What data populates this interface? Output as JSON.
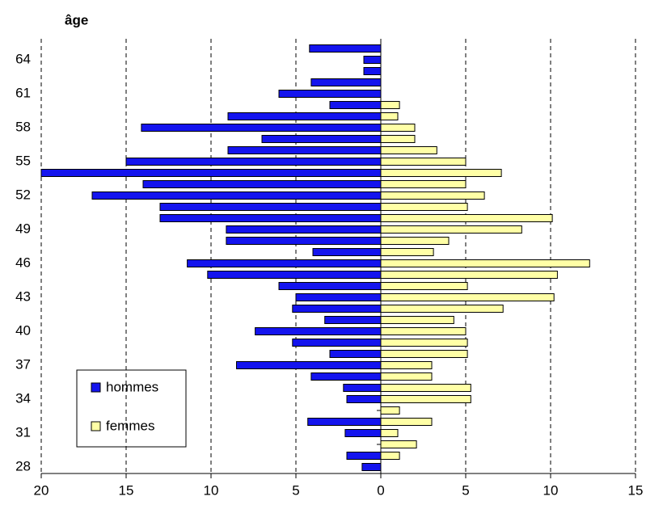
{
  "chart_data": {
    "type": "pyramid",
    "y_axis_title": "âge",
    "categories": [
      28,
      null,
      null,
      31,
      null,
      null,
      34,
      null,
      null,
      37,
      null,
      null,
      40,
      null,
      null,
      43,
      null,
      null,
      46,
      null,
      null,
      49,
      null,
      null,
      52,
      null,
      null,
      55,
      null,
      null,
      58,
      null,
      null,
      61,
      null,
      null,
      64,
      null
    ],
    "series": [
      {
        "name": "hommes",
        "color": "#1414ee",
        "values": [
          -1.1,
          -2,
          0,
          -2.1,
          -4.3,
          0,
          -2,
          -2.2,
          -4.1,
          -8.5,
          -3,
          -5.2,
          -7.4,
          -3.3,
          -5.2,
          -5,
          -6,
          -10.2,
          -11.4,
          -4,
          -9.1,
          -9.1,
          -13,
          -13,
          -17,
          -14,
          -20,
          -15,
          -9,
          -7,
          -14.1,
          -9,
          -3,
          -6,
          -4.1,
          -1,
          -1,
          -4.2
        ]
      },
      {
        "name": "femmes",
        "color": "#ffffa6",
        "values": [
          0,
          1.1,
          2.1,
          1,
          3,
          1.1,
          5.3,
          5.3,
          3,
          3,
          5.1,
          5.1,
          5,
          4.3,
          7.2,
          10.2,
          5.1,
          10.4,
          12.3,
          3.1,
          4,
          8.3,
          10.1,
          5.1,
          6.1,
          5,
          7.1,
          5,
          3.3,
          2,
          2,
          1,
          1.1,
          0,
          0,
          0,
          0,
          0
        ]
      }
    ],
    "xlim": [
      -20,
      15
    ],
    "xticks": [
      {
        "value": -20,
        "label": "20"
      },
      {
        "value": -15,
        "label": "15"
      },
      {
        "value": -10,
        "label": "10"
      },
      {
        "value": -5,
        "label": "5"
      },
      0,
      5,
      10,
      15
    ],
    "grid": true,
    "legend": "bottom-left"
  }
}
